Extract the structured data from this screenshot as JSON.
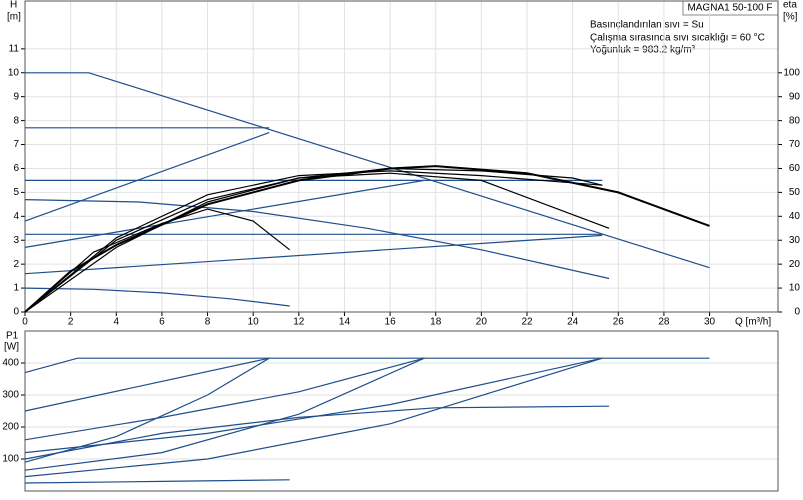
{
  "chart_data": [
    {
      "type": "line",
      "title": "MAGNA1 50-100 F",
      "notes": [
        "Basınçlandırılan sıvı = Su",
        "Çalışma sırasında sıvı sıcaklığı = 60 °C",
        "Yoğunluk = 983.2 kg/m³"
      ],
      "y_label": "H",
      "y_unit": "[m]",
      "y2_label": "eta",
      "y2_unit": "[%]",
      "x_label": "Q [m³/h]",
      "xlim": [
        0,
        33
      ],
      "xticks": [
        0,
        2,
        4,
        6,
        8,
        10,
        12,
        14,
        16,
        18,
        20,
        22,
        24,
        26,
        28,
        30
      ],
      "ylim": [
        0,
        13
      ],
      "yticks": [
        0,
        1,
        2,
        3,
        4,
        5,
        6,
        7,
        8,
        9,
        10,
        11
      ],
      "y2lim": [
        0,
        130
      ],
      "y2ticks": [
        0,
        10,
        20,
        30,
        40,
        50,
        60,
        70,
        80,
        90,
        100
      ],
      "grid": true,
      "series": [
        {
          "color": "#1f4e8c",
          "x": [
            0,
            2.8,
            30
          ],
          "values": [
            10,
            10,
            1.85
          ]
        },
        {
          "color": "#1f4e8c",
          "x": [
            0,
            10.7
          ],
          "values": [
            7.7,
            7.7
          ]
        },
        {
          "color": "#1f4e8c",
          "x": [
            0,
            25.3
          ],
          "values": [
            5.5,
            5.5
          ]
        },
        {
          "color": "#1f4e8c",
          "x": [
            0,
            25.3
          ],
          "values": [
            3.25,
            3.25
          ]
        },
        {
          "color": "#1f4e8c",
          "x": [
            0,
            10.7
          ],
          "values": [
            3.8,
            7.5
          ]
        },
        {
          "color": "#1f4e8c",
          "x": [
            0,
            17.5
          ],
          "values": [
            2.7,
            5.5
          ]
        },
        {
          "color": "#1f4e8c",
          "x": [
            0,
            25.3
          ],
          "values": [
            1.6,
            3.2
          ]
        },
        {
          "color": "#1f4e8c",
          "x": [
            0,
            5,
            10,
            15,
            20,
            25.6
          ],
          "values": [
            4.7,
            4.6,
            4.2,
            3.5,
            2.6,
            1.4
          ]
        },
        {
          "color": "#1f4e8c",
          "x": [
            0,
            3,
            6,
            9,
            11.6
          ],
          "values": [
            1,
            0.95,
            0.8,
            0.55,
            0.25
          ]
        },
        {
          "color": "#000000",
          "axis": "y2",
          "width": 2,
          "x": [
            0,
            2,
            4,
            8,
            12,
            16,
            18,
            22,
            26,
            30
          ],
          "values": [
            0,
            17,
            28,
            45,
            55,
            60,
            61,
            58,
            50,
            36
          ]
        },
        {
          "color": "#000000",
          "axis": "y2",
          "x": [
            0,
            3,
            6,
            8,
            10,
            11.6
          ],
          "values": [
            0,
            25,
            37,
            43,
            38,
            26
          ]
        },
        {
          "color": "#000000",
          "axis": "y2",
          "x": [
            0,
            4,
            8,
            12,
            16,
            20,
            25.6
          ],
          "values": [
            0,
            30,
            47,
            56,
            58,
            55,
            35
          ]
        },
        {
          "color": "#000000",
          "axis": "y2",
          "x": [
            0,
            4,
            8,
            12,
            16,
            20,
            25.3
          ],
          "values": [
            0,
            31,
            49,
            57,
            59,
            57,
            53
          ]
        },
        {
          "color": "#000000",
          "axis": "y2",
          "x": [
            0,
            4,
            8,
            12,
            16,
            20,
            24,
            25.3
          ],
          "values": [
            0,
            27,
            46,
            56,
            60,
            59,
            56,
            53
          ]
        }
      ]
    },
    {
      "type": "line",
      "y_label": "P1",
      "y_unit": "[W]",
      "xlim": [
        0,
        33
      ],
      "ylim": [
        0,
        500
      ],
      "yticks": [
        100,
        200,
        300,
        400
      ],
      "grid": true,
      "series": [
        {
          "color": "#1f4e8c",
          "x": [
            0,
            2.3,
            30
          ],
          "values": [
            370,
            415,
            415
          ]
        },
        {
          "color": "#1f4e8c",
          "x": [
            0,
            10.7
          ],
          "values": [
            250,
            415
          ]
        },
        {
          "color": "#1f4e8c",
          "x": [
            0,
            6,
            12,
            17.5
          ],
          "values": [
            160,
            230,
            310,
            415
          ]
        },
        {
          "color": "#1f4e8c",
          "x": [
            0,
            8,
            16,
            25.3
          ],
          "values": [
            120,
            180,
            270,
            415
          ]
        },
        {
          "color": "#1f4e8c",
          "x": [
            0,
            4,
            8,
            10.7
          ],
          "values": [
            90,
            170,
            300,
            415
          ]
        },
        {
          "color": "#1f4e8c",
          "x": [
            0,
            6,
            12,
            17.5
          ],
          "values": [
            65,
            120,
            240,
            415
          ]
        },
        {
          "color": "#1f4e8c",
          "x": [
            0,
            8,
            16,
            25.3
          ],
          "values": [
            45,
            100,
            210,
            415
          ]
        },
        {
          "color": "#1f4e8c",
          "x": [
            0,
            6,
            11.6
          ],
          "values": [
            25,
            30,
            35
          ]
        },
        {
          "color": "#1f4e8c",
          "x": [
            0,
            6,
            12,
            18,
            25.6
          ],
          "values": [
            100,
            180,
            230,
            260,
            265
          ]
        }
      ]
    }
  ]
}
